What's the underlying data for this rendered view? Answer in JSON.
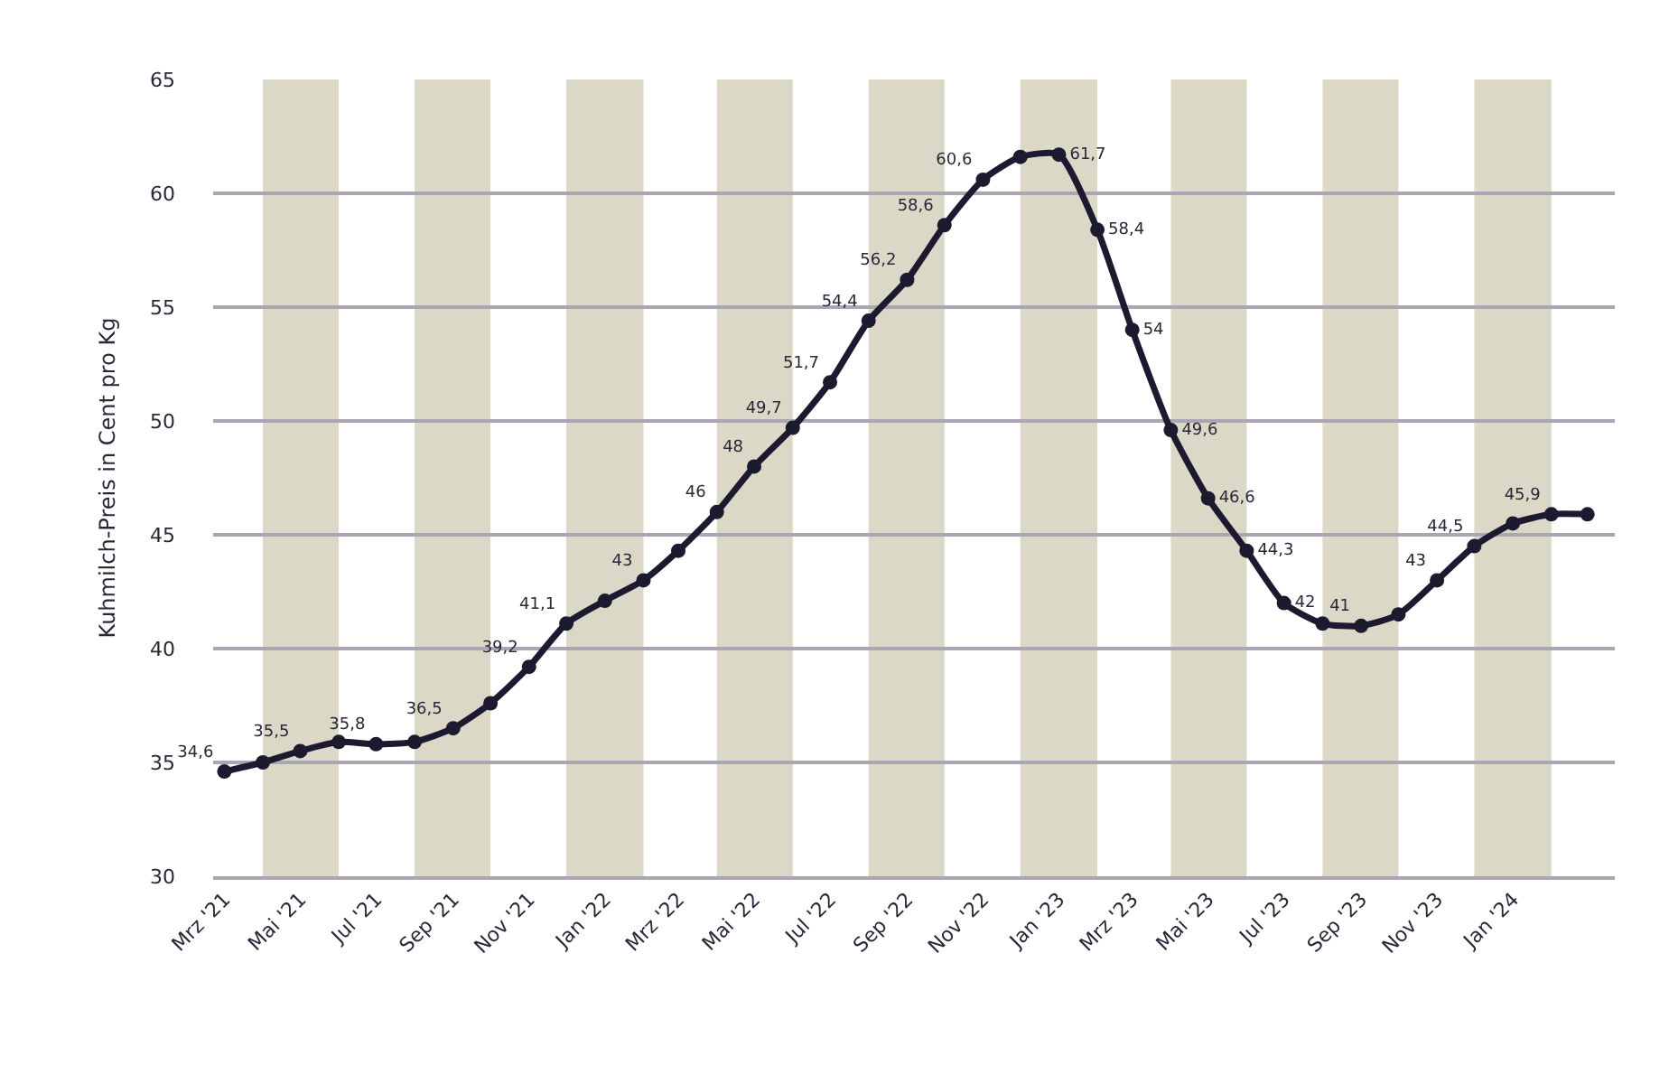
{
  "chart_data": {
    "type": "line",
    "ylabel": "Kuhmilch-Preis in Cent pro Kg",
    "x": [
      "2021-03",
      "2021-04",
      "2021-05",
      "2021-06",
      "2021-07",
      "2021-08",
      "2021-09",
      "2021-10",
      "2021-11",
      "2021-12",
      "2022-01",
      "2022-02",
      "2022-03",
      "2022-04",
      "2022-05",
      "2022-06",
      "2022-07",
      "2022-08",
      "2022-09",
      "2022-10",
      "2022-11",
      "2022-12",
      "2023-01",
      "2023-02",
      "2023-03",
      "2023-04",
      "2023-05",
      "2023-06",
      "2023-07",
      "2023-08",
      "2023-09",
      "2023-10",
      "2023-11",
      "2023-12",
      "2024-01",
      "2024-02",
      "2024-03"
    ],
    "series": [
      {
        "color": "#1c1a2e",
        "values": [
          34.6,
          35.0,
          35.5,
          35.9,
          35.8,
          35.9,
          36.5,
          37.6,
          39.2,
          41.1,
          42.1,
          43,
          44.3,
          46,
          48,
          49.7,
          51.7,
          54.4,
          56.2,
          58.6,
          60.6,
          61.6,
          61.7,
          58.4,
          54,
          49.6,
          46.6,
          44.3,
          42,
          41.1,
          41,
          41.5,
          43,
          44.5,
          45.5,
          45.9,
          45.9
        ],
        "value_labels": [
          "34,6",
          null,
          "35,5",
          null,
          "35,8",
          null,
          "36,5",
          null,
          "39,2",
          "41,1",
          null,
          "43",
          null,
          "46",
          "48",
          "49,7",
          "51,7",
          "54,4",
          "56,2",
          "58,6",
          "60,6",
          null,
          "61,7",
          "58,4",
          "54",
          "49,6",
          "46,6",
          "44,3",
          "42",
          null,
          "41",
          null,
          "43",
          "44,5",
          null,
          "45,9",
          null
        ]
      }
    ],
    "xlim": [
      "2021-02-20",
      "2024-03-23"
    ],
    "xticks": [
      {
        "value": "2021-03",
        "label": "Mrz '21"
      },
      {
        "value": "2021-05",
        "label": "Mai '21"
      },
      {
        "value": "2021-07",
        "label": "Jul '21"
      },
      {
        "value": "2021-09",
        "label": "Sep '21"
      },
      {
        "value": "2021-11",
        "label": "Nov '21"
      },
      {
        "value": "2022-01",
        "label": "Jan '22"
      },
      {
        "value": "2022-03",
        "label": "Mrz '22"
      },
      {
        "value": "2022-05",
        "label": "Mai '22"
      },
      {
        "value": "2022-07",
        "label": "Jul '22"
      },
      {
        "value": "2022-09",
        "label": "Sep '22"
      },
      {
        "value": "2022-11",
        "label": "Nov '22"
      },
      {
        "value": "2023-01",
        "label": "Jan '23"
      },
      {
        "value": "2023-03",
        "label": "Mrz '23"
      },
      {
        "value": "2023-05",
        "label": "Mai '23"
      },
      {
        "value": "2023-07",
        "label": "Jul '23"
      },
      {
        "value": "2023-09",
        "label": "Sep '23"
      },
      {
        "value": "2023-11",
        "label": "Nov '23"
      },
      {
        "value": "2024-01",
        "label": "Jan '24"
      }
    ],
    "ylim": [
      30,
      65
    ],
    "yticks": [
      30,
      35,
      40,
      45,
      50,
      55,
      60,
      65
    ],
    "grid": "y",
    "marker": "circle",
    "line_style": "solid",
    "bands": [
      {
        "axis": "x",
        "from": "2021-04",
        "to": "2021-06",
        "color": "#dcd8c8"
      },
      {
        "axis": "x",
        "from": "2021-08",
        "to": "2021-10",
        "color": "#dcd8c8"
      },
      {
        "axis": "x",
        "from": "2021-12",
        "to": "2022-02",
        "color": "#dcd8c8"
      },
      {
        "axis": "x",
        "from": "2022-04",
        "to": "2022-06",
        "color": "#dcd8c8"
      },
      {
        "axis": "x",
        "from": "2022-08",
        "to": "2022-10",
        "color": "#dcd8c8"
      },
      {
        "axis": "x",
        "from": "2022-12",
        "to": "2023-02",
        "color": "#dcd8c8"
      },
      {
        "axis": "x",
        "from": "2023-04",
        "to": "2023-06",
        "color": "#dcd8c8"
      },
      {
        "axis": "x",
        "from": "2023-08",
        "to": "2023-10",
        "color": "#dcd8c8"
      },
      {
        "axis": "x",
        "from": "2023-12",
        "to": "2024-02",
        "color": "#dcd8c8"
      }
    ]
  }
}
